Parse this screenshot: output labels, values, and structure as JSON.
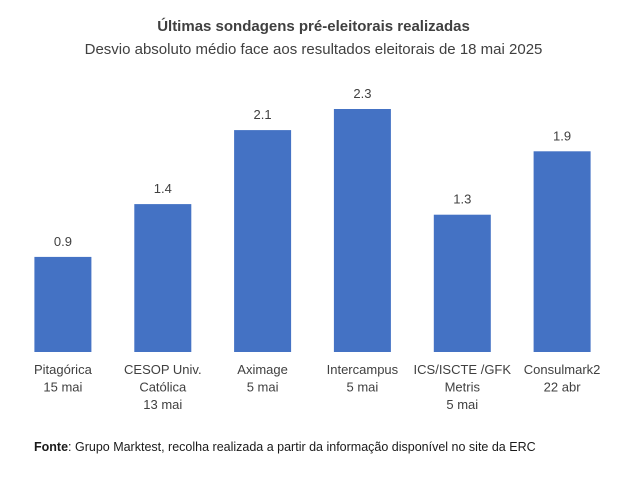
{
  "chart_data": {
    "type": "bar",
    "title": "Últimas sondagens pré-eleitorais realizadas",
    "subtitle": "Desvio absoluto médio face aos resultados eleitorais de 18 mai 2025",
    "categories": [
      [
        "Pitagórica",
        "15 mai"
      ],
      [
        "CESOP Univ.",
        "Católica",
        "13 mai"
      ],
      [
        "Aximage",
        "5 mai"
      ],
      [
        "Intercampus",
        "5 mai"
      ],
      [
        "ICS/ISCTE /GFK",
        "Metris",
        "5 mai"
      ],
      [
        "Consulmark2",
        "22 abr"
      ]
    ],
    "values": [
      0.9,
      1.4,
      2.1,
      2.3,
      1.3,
      1.9
    ],
    "value_labels": [
      "0.9",
      "1.4",
      "2.1",
      "2.3",
      "1.3",
      "1.9"
    ],
    "ylim": [
      0,
      2.6
    ],
    "grid": false,
    "bar_color": "#4472c4",
    "xlabel": "",
    "ylabel": ""
  },
  "source": {
    "label": "Fonte",
    "text": ": Grupo Marktest, recolha realizada a partir da informação disponível no site da ERC"
  }
}
